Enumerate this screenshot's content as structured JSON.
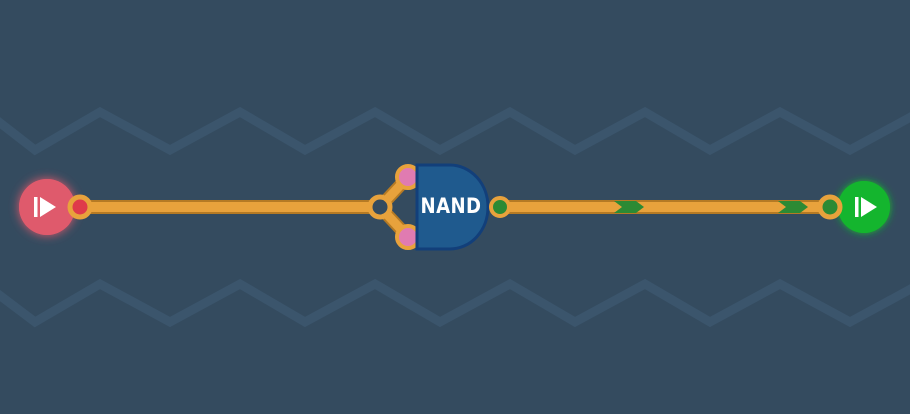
{
  "level": {
    "gate": {
      "label": "NAND",
      "type": "nand-gate"
    },
    "input": {
      "icon": "play-icon",
      "state": "off"
    },
    "output": {
      "icon": "play-icon",
      "state": "on"
    },
    "signal": {
      "direction": "right",
      "markers": 2
    }
  },
  "colors": {
    "background": "#344b5f",
    "zigzag": "#3b556c",
    "wire": "#e8a23c",
    "wire_dark": "#b57a24",
    "input_node": "#df5a6c",
    "output_node": "#14b52e",
    "gate_fill": "#1f5a8e",
    "gate_border": "#123f7a",
    "gate_input_pad": "#e07bb1",
    "signal_arrow": "#2c8a34"
  }
}
